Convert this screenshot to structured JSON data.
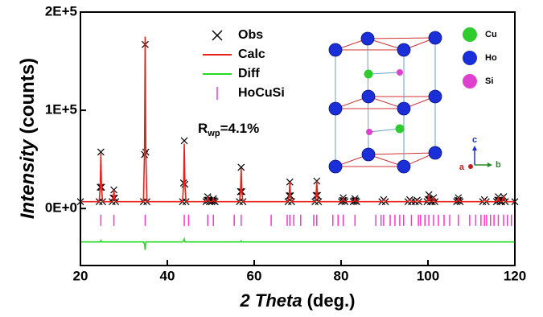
{
  "chart_data": {
    "type": "line",
    "xlabel_italic": "2 Theta",
    "xlabel": "(deg.)",
    "ylabel_italic": "Intensity",
    "ylabel": "(counts)",
    "xlim": [
      20,
      120
    ],
    "ylim": [
      -58000,
      200000
    ],
    "xticks": [
      20,
      40,
      60,
      80,
      100,
      120
    ],
    "yticks": [
      {
        "value": 0,
        "label": "0E+0"
      },
      {
        "value": 100000,
        "label": "1E+5"
      },
      {
        "value": 200000,
        "label": "2E+5"
      }
    ],
    "legend_loc": "upper center",
    "annotation": {
      "text": "R",
      "subscript": "wp",
      "tail": "=4.1%"
    },
    "inset": {
      "labels": [
        "Cu",
        "Ho",
        "Si"
      ],
      "axes": [
        "a",
        "b",
        "c"
      ]
    },
    "x": [
      20,
      24.3,
      24.55,
      24.7,
      24.85,
      25.1,
      27.3,
      27.55,
      27.7,
      27.85,
      28.1,
      34.5,
      34.75,
      34.9,
      35.05,
      35.3,
      43.5,
      43.75,
      43.9,
      44.05,
      44.3,
      48.9,
      49.15,
      49.3,
      49.45,
      49.7,
      50.2,
      50.45,
      50.6,
      50.75,
      51.0,
      56.6,
      56.85,
      57.0,
      57.15,
      57.4,
      67.8,
      68.05,
      68.2,
      68.35,
      68.6,
      74.0,
      74.25,
      74.4,
      74.55,
      74.8,
      80.1,
      80.35,
      80.5,
      80.65,
      80.9,
      82.8,
      83.05,
      83.2,
      83.35,
      83.6,
      89.4,
      89.8,
      90.2,
      95.4,
      95.8,
      96.2,
      97.1,
      97.5,
      97.9,
      99.8,
      100.05,
      100.2,
      100.35,
      100.6,
      101.0,
      101.3,
      101.6,
      106.6,
      106.85,
      107.0,
      107.15,
      107.4,
      112.6,
      113.0,
      113.4,
      115.8,
      116.05,
      116.2,
      116.35,
      116.6,
      117.0,
      117.4,
      117.8,
      120
    ],
    "series": [
      {
        "name": "Obs",
        "style": "x-marker",
        "color": "#000000",
        "values": [
          7000,
          7000,
          21700,
          57500,
          21700,
          7000,
          7000,
          10600,
          19000,
          10600,
          7000,
          7000,
          55000,
          167000,
          57400,
          7000,
          7000,
          26000,
          69000,
          24700,
          7000,
          7000,
          8500,
          12000,
          8500,
          7000,
          7000,
          7900,
          10000,
          7900,
          7000,
          7000,
          17200,
          42000,
          17200,
          7000,
          7000,
          13000,
          27000,
          13000,
          7000,
          7000,
          13300,
          28000,
          13300,
          7000,
          7000,
          8200,
          11000,
          8200,
          7000,
          7000,
          7900,
          10000,
          7900,
          7000,
          7000,
          9000,
          7000,
          7000,
          9000,
          7000,
          7000,
          8500,
          7000,
          7000,
          9100,
          14000,
          9100,
          7000,
          7000,
          11000,
          7000,
          7000,
          8200,
          11000,
          8200,
          7000,
          7000,
          9000,
          7000,
          7000,
          8500,
          12000,
          8500,
          7000,
          7000,
          12000,
          7000,
          7000
        ]
      },
      {
        "name": "Calc",
        "style": "line",
        "color": "#e8201c",
        "values": [
          7000,
          7000,
          21700,
          56000,
          21700,
          7000,
          7000,
          10600,
          19000,
          10600,
          7000,
          7000,
          57400,
          175000,
          57400,
          7000,
          7000,
          24700,
          66000,
          24700,
          7000,
          7000,
          8500,
          12000,
          8500,
          7000,
          7000,
          7900,
          10000,
          7900,
          7000,
          7000,
          17200,
          41000,
          17200,
          7000,
          7000,
          13000,
          27000,
          13000,
          7000,
          7000,
          13300,
          28000,
          13300,
          7000,
          7000,
          8200,
          11000,
          8200,
          7000,
          7000,
          7900,
          10000,
          7900,
          7000,
          7000,
          9000,
          7000,
          7000,
          9000,
          7000,
          7000,
          8500,
          7000,
          7000,
          9100,
          14000,
          9100,
          7000,
          7000,
          11000,
          7000,
          7000,
          8200,
          11000,
          8200,
          7000,
          7000,
          9000,
          7000,
          7000,
          8500,
          12000,
          8500,
          7000,
          7000,
          12000,
          7000,
          7000
        ]
      },
      {
        "name": "Diff",
        "style": "line",
        "color": "#22dd22",
        "values": [
          -34000,
          -34000,
          -34000,
          -32500,
          -34000,
          -34000,
          -34000,
          -34000,
          -34000,
          -34000,
          -34000,
          -34000,
          -36400,
          -42000,
          -34000,
          -34000,
          -34000,
          -32700,
          -31000,
          -34000,
          -34000,
          -34000,
          -34000,
          -34000,
          -34000,
          -34000,
          -34000,
          -34000,
          -34000,
          -34000,
          -34000,
          -34000,
          -34000,
          -33000,
          -34000,
          -34000,
          -34000,
          -34000,
          -34000,
          -34000,
          -34000,
          -34000,
          -34000,
          -34000,
          -34000,
          -34000,
          -34000,
          -34000,
          -34000,
          -34000,
          -34000,
          -34000,
          -34000,
          -34000,
          -34000,
          -34000,
          -34000,
          -34000,
          -34000,
          -34000,
          -34000,
          -34000,
          -34000,
          -34000,
          -34000,
          -34000,
          -34000,
          -34000,
          -34000,
          -34000,
          -34000,
          -34000,
          -34000,
          -34000,
          -34000,
          -34000,
          -34000,
          -34000,
          -34000,
          -34000,
          -34000,
          -34000,
          -34000,
          -34000,
          -34000,
          -34000,
          -34000,
          -34000,
          -34000,
          -34000
        ]
      },
      {
        "name": "HoCuSi",
        "style": "tick",
        "color": "#ff33cc",
        "x": [
          24.7,
          27.7,
          34.9,
          43.9,
          44.9,
          49.3,
          50.6,
          55.4,
          57.0,
          63.9,
          67.6,
          68.2,
          69.1,
          70.7,
          73.7,
          74.4,
          78.1,
          79.3,
          80.5,
          83.2,
          88.0,
          89.2,
          89.8,
          91.3,
          92.4,
          93.5,
          94.4,
          96.2,
          97.8,
          98.3,
          99.3,
          100.2,
          101.3,
          102.4,
          103.7,
          105.0,
          107.0,
          109.6,
          111.0,
          112.2,
          113.0,
          113.5,
          114.4,
          115.2,
          116.2,
          117.4,
          118.3,
          119.2
        ],
        "values": [
          -12000,
          -12000,
          -12000,
          -12000,
          -12000,
          -12000,
          -12000,
          -12000,
          -12000,
          -12000,
          -12000,
          -12000,
          -12000,
          -12000,
          -12000,
          -12000,
          -12000,
          -12000,
          -12000,
          -12000,
          -12000,
          -12000,
          -12000,
          -12000,
          -12000,
          -12000,
          -12000,
          -12000,
          -12000,
          -12000,
          -12000,
          -12000,
          -12000,
          -12000,
          -12000,
          -12000,
          -12000,
          -12000,
          -12000,
          -12000,
          -12000,
          -12000,
          -12000,
          -12000,
          -12000,
          -12000,
          -12000,
          -12000
        ]
      }
    ]
  }
}
